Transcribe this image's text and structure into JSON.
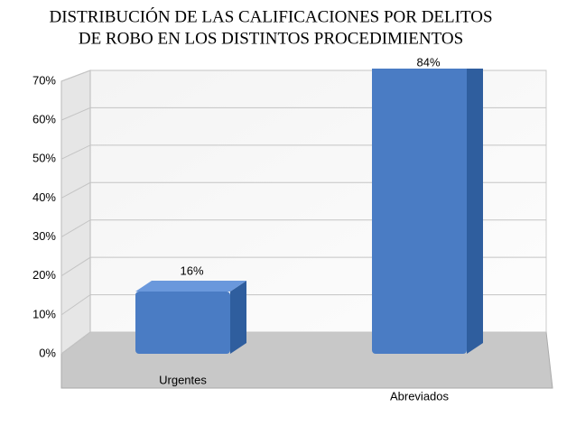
{
  "chart_data": {
    "type": "bar3d",
    "title": [
      "DISTRIBUCIÓN DE LAS CALIFICACIONES POR DELITOS",
      "DE ROBO EN  LOS DISTINTOS PROCEDIMIENTOS"
    ],
    "categories": [
      "Urgentes",
      "Abreviados"
    ],
    "values": [
      16,
      84
    ],
    "value_labels": [
      "16%",
      "84%"
    ],
    "color": "#4a7cc4",
    "ylim": [
      0,
      70
    ],
    "yticks": [
      {
        "value": 0,
        "label": "0%"
      },
      {
        "value": 10,
        "label": "10%"
      },
      {
        "value": 20,
        "label": "20%"
      },
      {
        "value": 30,
        "label": "30%"
      },
      {
        "value": 40,
        "label": "40%"
      },
      {
        "value": 50,
        "label": "50%"
      },
      {
        "value": 60,
        "label": "60%"
      },
      {
        "value": 70,
        "label": "70%"
      }
    ],
    "grid": true
  }
}
